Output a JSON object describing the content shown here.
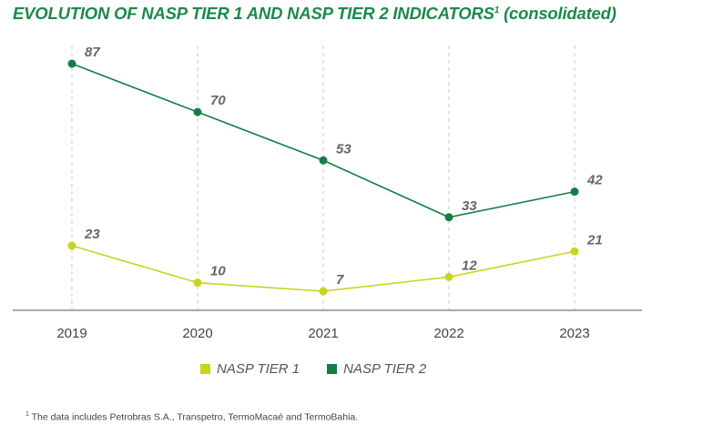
{
  "title": {
    "main": "EVOLUTION OF NASP TIER 1 AND NASP TIER 2 INDICATORS",
    "sup": "1",
    "suffix": " (consolidated)"
  },
  "footnote": {
    "sup": "1",
    "text": " The data includes Petrobras S.A., Transpetro, TermoMacaé and TermoBahia."
  },
  "legend": [
    {
      "label": "NASP TIER 1",
      "color": "#c8d41e"
    },
    {
      "label": "NASP TIER 2",
      "color": "#137f46"
    }
  ],
  "chart_data": {
    "type": "line",
    "title": "EVOLUTION OF NASP TIER 1 AND NASP TIER 2 INDICATORS (consolidated)",
    "categories": [
      "2019",
      "2020",
      "2021",
      "2022",
      "2023"
    ],
    "series": [
      {
        "name": "NASP TIER 1",
        "values": [
          23,
          10,
          7,
          12,
          21
        ],
        "color": "#c8d41e"
      },
      {
        "name": "NASP TIER 2",
        "values": [
          87,
          70,
          53,
          33,
          42
        ],
        "color": "#137f46"
      }
    ],
    "ylim": [
      0,
      87
    ],
    "grid": "vertical dashed",
    "legend_position": "bottom"
  }
}
